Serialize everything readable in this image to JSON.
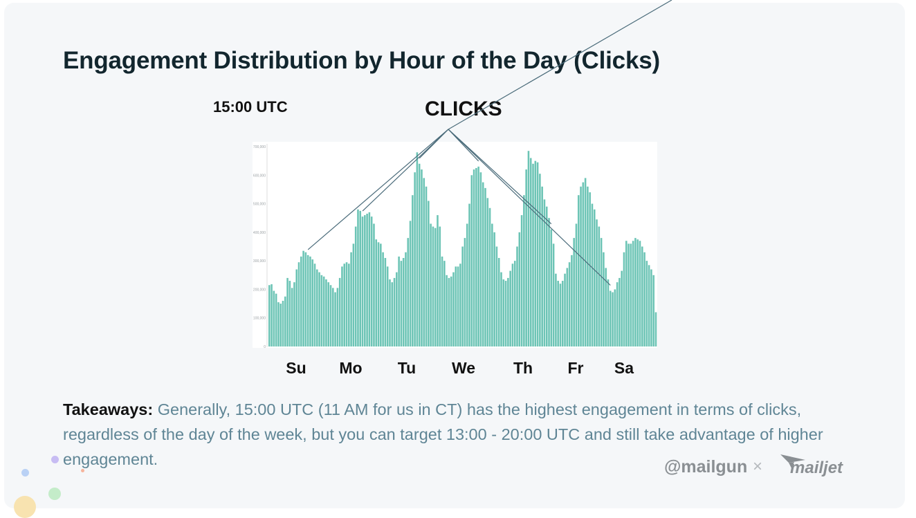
{
  "slide": {
    "title": "Engagement Distribution by Hour of the Day (Clicks)",
    "peak_label": "15:00 UTC",
    "annotation_label": "CLICKS",
    "takeaways_label": "Takeaways:",
    "takeaways_text": " Generally, 15:00 UTC (11 AM for us in CT) has the highest engagement in terms of clicks, regardless of the day of the week, but you can target 13:00 - 20:00 UTC and still take advantage of higher engagement.",
    "logos": {
      "mailgun": "@mailgun",
      "separator": "×",
      "mailjet": "mailjet"
    }
  },
  "colors": {
    "bar": "#6cc4b5",
    "title": "#12262e",
    "body": "#5f8595",
    "logo": "#8a8f93",
    "annotation_line": "#4a6b7a"
  },
  "chart_data": {
    "type": "bar",
    "ylim": [
      0,
      700000
    ],
    "yticks": [
      0,
      100000,
      200000,
      300000,
      400000,
      500000,
      600000,
      700000
    ],
    "ytick_labels": [
      "0",
      "100,000",
      "200,000",
      "300,000",
      "400,000",
      "500,000",
      "600,000",
      "700,000"
    ],
    "day_labels": [
      "Su",
      "Mo",
      "Tu",
      "We",
      "Th",
      "Fr",
      "Sa"
    ],
    "values": [
      215000,
      218000,
      195000,
      185000,
      155000,
      150000,
      160000,
      175000,
      240000,
      230000,
      205000,
      225000,
      270000,
      295000,
      315000,
      335000,
      330000,
      320000,
      315000,
      305000,
      290000,
      270000,
      260000,
      250000,
      245000,
      235000,
      225000,
      215000,
      205000,
      190000,
      205000,
      240000,
      280000,
      290000,
      295000,
      290000,
      330000,
      360000,
      420000,
      480000,
      475000,
      455000,
      460000,
      465000,
      470000,
      455000,
      430000,
      375000,
      365000,
      360000,
      330000,
      310000,
      280000,
      235000,
      225000,
      240000,
      260000,
      315000,
      300000,
      310000,
      330000,
      380000,
      440000,
      530000,
      610000,
      680000,
      640000,
      620000,
      590000,
      560000,
      510000,
      430000,
      420000,
      415000,
      460000,
      420000,
      315000,
      300000,
      250000,
      240000,
      245000,
      260000,
      280000,
      280000,
      290000,
      350000,
      380000,
      430000,
      500000,
      600000,
      620000,
      625000,
      630000,
      610000,
      575000,
      555000,
      520000,
      485000,
      430000,
      400000,
      350000,
      310000,
      260000,
      235000,
      230000,
      240000,
      265000,
      290000,
      300000,
      350000,
      400000,
      460000,
      530000,
      620000,
      685000,
      660000,
      640000,
      650000,
      645000,
      605000,
      560000,
      515000,
      490000,
      450000,
      410000,
      360000,
      255000,
      230000,
      220000,
      230000,
      255000,
      275000,
      295000,
      320000,
      380000,
      430000,
      530000,
      560000,
      575000,
      590000,
      560000,
      540000,
      500000,
      480000,
      445000,
      420000,
      380000,
      330000,
      275000,
      235000,
      195000,
      190000,
      200000,
      225000,
      240000,
      265000,
      330000,
      370000,
      360000,
      360000,
      370000,
      380000,
      375000,
      370000,
      350000,
      330000,
      300000,
      285000,
      270000,
      250000,
      120000
    ]
  }
}
